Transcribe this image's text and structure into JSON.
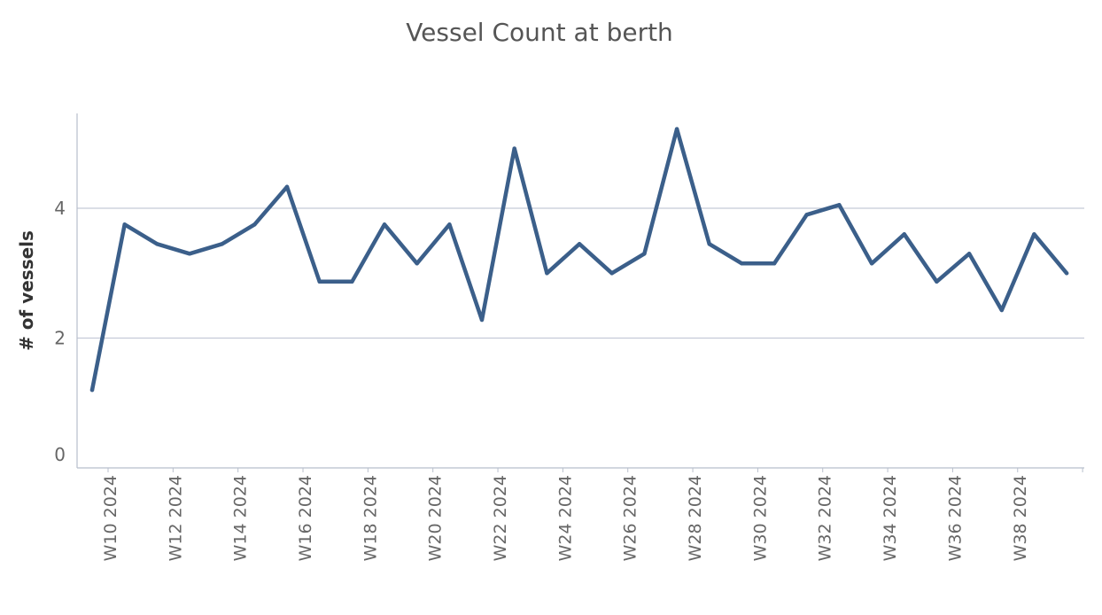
{
  "chart_data": {
    "type": "line",
    "title": "Vessel Count at berth",
    "xlabel": "",
    "ylabel": "# of vessels",
    "ylim": [
      0,
      5.3
    ],
    "yticks": [
      "0",
      "2",
      "4"
    ],
    "ytick_values": [
      0,
      2,
      4
    ],
    "grid": "horizontal",
    "x": [
      "W10 2024",
      "W11 2024",
      "W12 2024",
      "W13 2024",
      "W14 2024",
      "W15 2024",
      "W16 2024",
      "W17 2024",
      "W18 2024",
      "W19 2024",
      "W20 2024",
      "W21 2024",
      "W22 2024",
      "W23 2024",
      "W24 2024",
      "W25 2024",
      "W26 2024",
      "W27 2024",
      "W28 2024",
      "W29 2024",
      "W30 2024",
      "W31 2024",
      "W32 2024",
      "W33 2024",
      "W34 2024",
      "W35 2024",
      "W36 2024",
      "W37 2024",
      "W38 2024",
      "W39 2024",
      "W40 2024"
    ],
    "xtick_labels": [
      "W10 2024",
      "W12 2024",
      "W14 2024",
      "W16 2024",
      "W18 2024",
      "W20 2024",
      "W22 2024",
      "W24 2024",
      "W26 2024",
      "W28 2024",
      "W30 2024",
      "W32 2024",
      "W34 2024",
      "W36 2024",
      "W38 2024"
    ],
    "series": [
      {
        "color": "#3b5f8a",
        "values": [
          1.2,
          3.75,
          3.45,
          3.3,
          3.45,
          3.75,
          4.33,
          2.87,
          2.87,
          3.75,
          3.15,
          3.75,
          2.28,
          4.92,
          3.0,
          3.45,
          3.0,
          3.3,
          5.22,
          3.45,
          3.15,
          3.15,
          3.9,
          4.05,
          3.15,
          3.6,
          2.87,
          3.3,
          2.43,
          3.6,
          3.0
        ]
      }
    ]
  },
  "colors": {
    "line": "#3b5f8a",
    "grid": "#c5cbd8",
    "axis": "#b8bfcc"
  }
}
